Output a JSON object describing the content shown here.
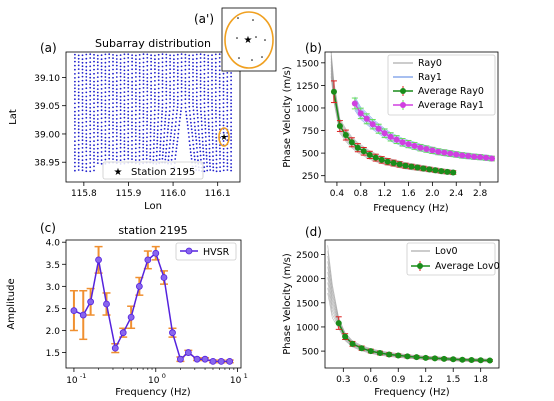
{
  "panels": {
    "a": {
      "letter": "(a)",
      "title": "Subarray distribution",
      "xlabel": "Lon",
      "ylabel": "Lat",
      "xticks": [
        "115.8",
        "115.9",
        "116.0",
        "116.1"
      ],
      "yticks": [
        "38.95",
        "39.00",
        "39.05",
        "39.10"
      ],
      "legend": "Station 2195",
      "inset_letter": "(a')"
    },
    "b": {
      "letter": "(b)",
      "xlabel": "Frequency (Hz)",
      "ylabel": "Phase Velocity (m/s)",
      "xticks": [
        "0.4",
        "0.8",
        "1.2",
        "1.6",
        "2.0",
        "2.4",
        "2.8"
      ],
      "yticks": [
        "250",
        "500",
        "750",
        "1000",
        "1250",
        "1500"
      ],
      "legend": [
        "Ray0",
        "Ray1",
        "Average Ray0",
        "Average Ray1"
      ]
    },
    "c": {
      "letter": "(c)",
      "title": "station 2195",
      "xlabel": "Frequency (Hz)",
      "ylabel": "Amplitude",
      "xticks": [
        "10",
        "10",
        "10"
      ],
      "xtick_exp": [
        "-1",
        "0",
        "1"
      ],
      "yticks": [
        "1.5",
        "2.0",
        "2.5",
        "3.0",
        "3.5",
        "4.0"
      ],
      "legend": "HVSR"
    },
    "d": {
      "letter": "(d)",
      "xlabel": "Frequency (Hz)",
      "ylabel": "Phase Velocity (m/s)",
      "xticks": [
        "0.3",
        "0.6",
        "0.9",
        "1.2",
        "1.5",
        "1.8"
      ],
      "yticks": [
        "500",
        "1000",
        "1500",
        "2000",
        "2500"
      ],
      "legend": [
        "Lov0",
        "Average Lov0"
      ]
    }
  },
  "colors": {
    "station_dots": "#1f1fcc",
    "station_star": "#e01010",
    "inset_circle": "#f0a020",
    "ray0_lines": "#999999",
    "ray1_lines": "#4f7fe0",
    "avg_ray0": "#1a8c1a",
    "avg_ray1": "#d040e0",
    "errbar_red": "#dd1f1f",
    "errbar_green": "#66e05a",
    "hvsr_line": "#5522dd",
    "hvsr_marker": "#8866ee",
    "hvsr_err": "#f09030"
  },
  "chart_data": [
    {
      "type": "scatter",
      "panel": "a",
      "title": "Subarray distribution",
      "xlabel": "Lon",
      "ylabel": "Lat",
      "xlim": [
        115.76,
        116.15
      ],
      "ylim": [
        38.915,
        39.145
      ],
      "grid_lon": [
        115.78,
        116.13
      ],
      "grid_lat": [
        38.935,
        39.14
      ],
      "grid_cols": 42,
      "grid_rows": 32,
      "station": {
        "name": "Station 2195",
        "lon": 116.125,
        "lat": 38.99
      }
    },
    {
      "type": "line",
      "panel": "b",
      "xlabel": "Frequency (Hz)",
      "ylabel": "Phase Velocity (m/s)",
      "xlim": [
        0.2,
        3.1
      ],
      "ylim": [
        180,
        1620
      ],
      "series": [
        {
          "name": "Average Ray0",
          "x": [
            0.35,
            0.45,
            0.55,
            0.65,
            0.75,
            0.85,
            0.95,
            1.05,
            1.15,
            1.25,
            1.35,
            1.45,
            1.55,
            1.65,
            1.75,
            1.85,
            1.95,
            2.05,
            2.15,
            2.25,
            2.35
          ],
          "y": [
            1180,
            800,
            700,
            620,
            560,
            520,
            480,
            450,
            425,
            405,
            390,
            375,
            360,
            350,
            340,
            330,
            320,
            310,
            300,
            292,
            285
          ],
          "err": [
            120,
            60,
            55,
            50,
            45,
            42,
            40,
            38,
            36,
            34,
            32,
            30,
            28,
            26,
            25,
            24,
            23,
            22,
            21,
            20,
            20
          ]
        },
        {
          "name": "Average Ray1",
          "x": [
            0.7,
            0.8,
            0.9,
            1.0,
            1.1,
            1.2,
            1.3,
            1.4,
            1.5,
            1.6,
            1.7,
            1.8,
            1.9,
            2.0,
            2.1,
            2.2,
            2.3,
            2.4,
            2.5,
            2.6,
            2.7,
            2.8,
            2.9,
            3.0
          ],
          "y": [
            1050,
            940,
            880,
            820,
            770,
            720,
            680,
            650,
            620,
            600,
            580,
            560,
            545,
            530,
            515,
            505,
            495,
            485,
            475,
            468,
            460,
            455,
            448,
            440
          ],
          "err": [
            60,
            58,
            55,
            52,
            50,
            48,
            46,
            44,
            42,
            40,
            38,
            36,
            35,
            34,
            33,
            32,
            31,
            30,
            30,
            29,
            28,
            28,
            27,
            26
          ]
        }
      ]
    },
    {
      "type": "line",
      "panel": "c",
      "title": "station 2195",
      "xlabel": "Frequency (Hz)",
      "ylabel": "Amplitude",
      "xscale": "log",
      "xlim": [
        0.08,
        11
      ],
      "ylim": [
        1.15,
        4.05
      ],
      "series": [
        {
          "name": "HVSR",
          "x": [
            0.1,
            0.13,
            0.16,
            0.2,
            0.25,
            0.32,
            0.4,
            0.5,
            0.63,
            0.8,
            1.0,
            1.26,
            1.6,
            2.0,
            2.5,
            3.2,
            4.0,
            5.0,
            6.3,
            8.0
          ],
          "y": [
            2.45,
            2.35,
            2.65,
            3.6,
            2.6,
            1.6,
            1.95,
            2.3,
            3.0,
            3.6,
            3.75,
            3.2,
            1.95,
            1.35,
            1.5,
            1.35,
            1.35,
            1.3,
            1.3,
            1.3
          ],
          "err": [
            0.45,
            0.55,
            0.3,
            0.3,
            0.25,
            0.1,
            0.1,
            0.25,
            0.2,
            0.2,
            0.15,
            0.15,
            0.1,
            0.05,
            0.05,
            0.03,
            0.03,
            0.03,
            0.03,
            0.03
          ]
        }
      ]
    },
    {
      "type": "line",
      "panel": "d",
      "xlabel": "Frequency (Hz)",
      "ylabel": "Phase Velocity (m/s)",
      "xlim": [
        0.1,
        2.0
      ],
      "ylim": [
        150,
        2800
      ],
      "series": [
        {
          "name": "Average Lov0",
          "x": [
            0.25,
            0.32,
            0.4,
            0.5,
            0.6,
            0.7,
            0.8,
            0.9,
            1.0,
            1.1,
            1.2,
            1.3,
            1.4,
            1.5,
            1.6,
            1.7,
            1.8,
            1.9
          ],
          "y": [
            1080,
            800,
            650,
            560,
            500,
            460,
            430,
            410,
            390,
            375,
            360,
            350,
            340,
            330,
            320,
            315,
            310,
            305
          ],
          "err": [
            130,
            60,
            50,
            45,
            40,
            38,
            35,
            33,
            31,
            30,
            28,
            27,
            26,
            25,
            24,
            23,
            22,
            21
          ]
        }
      ]
    }
  ]
}
